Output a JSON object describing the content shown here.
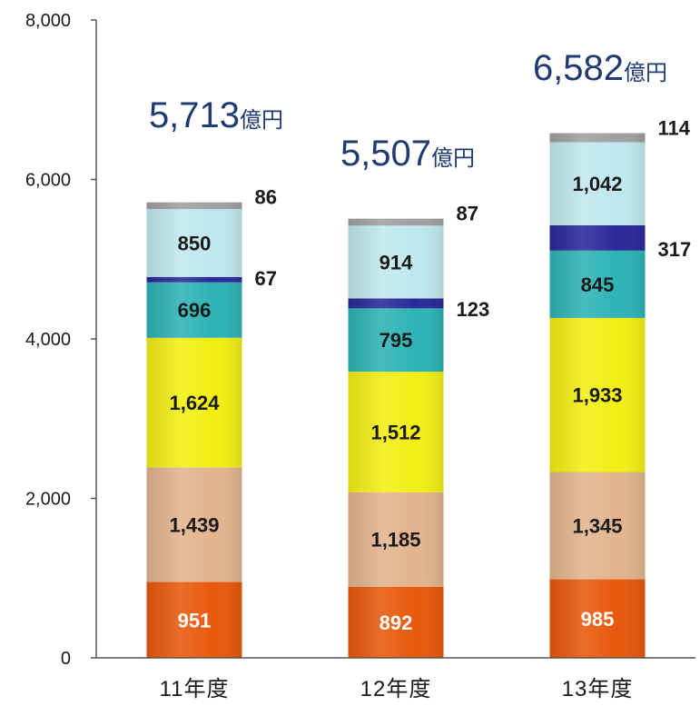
{
  "chart_data": {
    "type": "bar",
    "stacked": true,
    "categories": [
      "11年度",
      "12年度",
      "13年度"
    ],
    "ylim": [
      0,
      8000
    ],
    "yticks": [
      "0",
      "2,000",
      "4,000",
      "6,000",
      "8,000"
    ],
    "grid": false,
    "legend": "none",
    "series": [
      {
        "color": "#e8590c",
        "values": [
          951,
          892,
          985
        ],
        "labels": [
          "951",
          "892",
          "985"
        ]
      },
      {
        "color": "#e2b48e",
        "values": [
          1439,
          1185,
          1345
        ],
        "labels": [
          "1,439",
          "1,185",
          "1,345"
        ]
      },
      {
        "color": "#f2ee14",
        "values": [
          1624,
          1512,
          1933
        ],
        "labels": [
          "1,624",
          "1,512",
          "1,933"
        ]
      },
      {
        "color": "#2eb3b6",
        "values": [
          696,
          795,
          845
        ],
        "labels": [
          "696",
          "795",
          "845"
        ]
      },
      {
        "color": "#2a2a9a",
        "values": [
          67,
          123,
          317
        ],
        "labels": [
          "67",
          "123",
          "317"
        ]
      },
      {
        "color": "#bfe8ee",
        "values": [
          850,
          914,
          1042
        ],
        "labels": [
          "850",
          "914",
          "1,042"
        ]
      },
      {
        "color": "#a0a0a0",
        "values": [
          86,
          87,
          114
        ],
        "labels": [
          "86",
          "87",
          "114"
        ]
      }
    ],
    "totals": [
      {
        "number": "5,713",
        "unit": "億円"
      },
      {
        "number": "5,507",
        "unit": "億円"
      },
      {
        "number": "6,582",
        "unit": "億円"
      }
    ],
    "total_color": "#1f3b70"
  }
}
